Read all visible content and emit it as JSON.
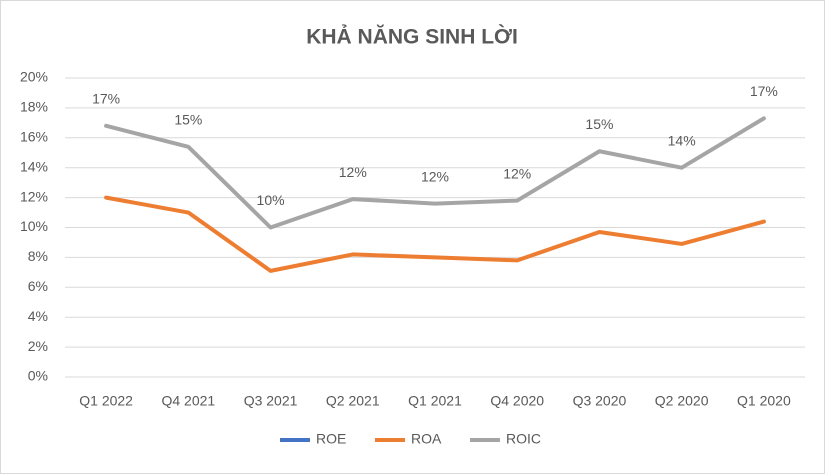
{
  "chart_data": {
    "type": "line",
    "title": "KHẢ NĂNG SINH LỜI",
    "categories": [
      "Q1 2022",
      "Q4 2021",
      "Q3 2021",
      "Q2 2021",
      "Q1 2021",
      "Q4 2020",
      "Q3 2020",
      "Q2 2020",
      "Q1 2020"
    ],
    "series": [
      {
        "name": "ROE",
        "color": "#4472c4",
        "values": [
          null,
          null,
          null,
          null,
          null,
          null,
          null,
          null,
          null
        ]
      },
      {
        "name": "ROA",
        "color": "#ed7d31",
        "values": [
          12.0,
          11.0,
          7.1,
          8.2,
          8.0,
          7.8,
          9.7,
          8.9,
          10.4
        ]
      },
      {
        "name": "ROIC",
        "color": "#a5a5a5",
        "values": [
          16.8,
          15.4,
          10.0,
          11.9,
          11.6,
          11.8,
          15.1,
          14.0,
          17.3
        ],
        "value_labels": [
          "17%",
          "15%",
          "10%",
          "12%",
          "12%",
          "12%",
          "15%",
          "14%",
          "17%"
        ]
      }
    ],
    "ylim": [
      0,
      20
    ],
    "yticks": [
      {
        "value": 0,
        "label": "0%"
      },
      {
        "value": 2,
        "label": "2%"
      },
      {
        "value": 4,
        "label": "4%"
      },
      {
        "value": 6,
        "label": "6%"
      },
      {
        "value": 8,
        "label": "8%"
      },
      {
        "value": 10,
        "label": "10%"
      },
      {
        "value": 12,
        "label": "12%"
      },
      {
        "value": 14,
        "label": "14%"
      },
      {
        "value": 16,
        "label": "16%"
      },
      {
        "value": 18,
        "label": "18%"
      },
      {
        "value": 20,
        "label": "20%"
      }
    ],
    "grid": true,
    "legend": "bottom"
  }
}
